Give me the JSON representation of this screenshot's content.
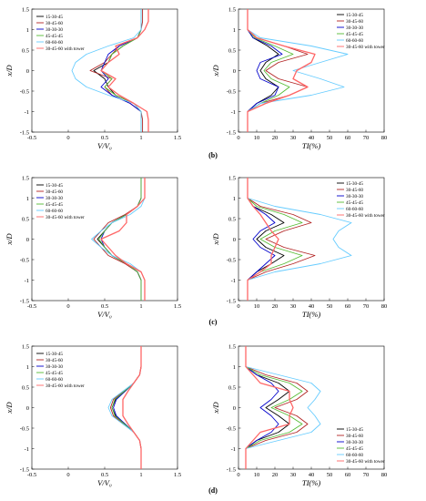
{
  "colors": [
    "#000000",
    "#b22222",
    "#0000cc",
    "#55bb33",
    "#66ccff",
    "#ff6666"
  ],
  "series_names": [
    "15-30-45",
    "30-45-60",
    "30-30-30",
    "45-45-45",
    "60-60-60",
    "30-45-60 with tower"
  ],
  "panel_labels": [
    "(b)",
    "(c)",
    "(d)"
  ],
  "chart_data": [
    {
      "type": "line",
      "row": 0,
      "kind": "V",
      "xlabel": "V/V₀",
      "ylabel": "x/D",
      "xlim": [
        -0.5,
        1.5
      ],
      "ylim": [
        -1.5,
        1.5
      ],
      "xticks": [
        -0.5,
        0.0,
        0.5,
        1.0,
        1.5
      ],
      "yticks": [
        -1.5,
        -1.0,
        -0.5,
        0.0,
        0.5,
        1.0,
        1.5
      ],
      "legend": "top-left",
      "y": [
        -1.5,
        -1.2,
        -1.0,
        -0.8,
        -0.6,
        -0.4,
        -0.2,
        0.0,
        0.2,
        0.4,
        0.6,
        0.8,
        1.0,
        1.2,
        1.5
      ],
      "series": [
        {
          "name": "15-30-45",
          "values": [
            1.0,
            1.0,
            1.0,
            0.9,
            0.65,
            0.55,
            0.5,
            0.35,
            0.55,
            0.6,
            0.75,
            0.95,
            1.0,
            1.0,
            1.0
          ]
        },
        {
          "name": "30-45-60",
          "values": [
            1.02,
            1.02,
            1.0,
            0.85,
            0.6,
            0.5,
            0.6,
            0.3,
            0.5,
            0.6,
            0.7,
            0.95,
            1.0,
            1.02,
            1.02
          ]
        },
        {
          "name": "30-30-30",
          "values": [
            1.0,
            1.0,
            1.0,
            0.85,
            0.6,
            0.45,
            0.55,
            0.45,
            0.5,
            0.55,
            0.7,
            0.95,
            1.0,
            1.0,
            1.0
          ]
        },
        {
          "name": "45-45-45",
          "values": [
            1.0,
            1.0,
            1.0,
            0.9,
            0.65,
            0.5,
            0.6,
            0.45,
            0.55,
            0.6,
            0.75,
            0.95,
            1.0,
            1.0,
            1.0
          ]
        },
        {
          "name": "60-60-60",
          "values": [
            1.0,
            1.0,
            1.0,
            0.9,
            0.55,
            0.25,
            0.1,
            0.05,
            0.1,
            0.25,
            0.55,
            0.9,
            1.0,
            1.0,
            1.0
          ]
        },
        {
          "name": "30-45-60 with tower",
          "values": [
            1.1,
            1.1,
            1.08,
            0.9,
            0.7,
            0.55,
            0.65,
            0.45,
            0.55,
            0.7,
            0.65,
            0.95,
            1.05,
            1.1,
            1.1
          ]
        }
      ]
    },
    {
      "type": "line",
      "row": 0,
      "kind": "TI",
      "xlabel": "TI(%)",
      "ylabel": "x/D",
      "xlim": [
        0,
        80
      ],
      "ylim": [
        -1.5,
        1.5
      ],
      "xticks": [
        0,
        10,
        20,
        30,
        40,
        50,
        60,
        70,
        80
      ],
      "yticks": [
        -1.5,
        -1.0,
        -0.5,
        0.0,
        0.5,
        1.0,
        1.5
      ],
      "legend": "top-right",
      "y": [
        -1.5,
        -1.0,
        -0.8,
        -0.6,
        -0.4,
        -0.2,
        0.0,
        0.2,
        0.4,
        0.6,
        0.8,
        1.0,
        1.5
      ],
      "series": [
        {
          "name": "15-30-45",
          "values": [
            5,
            5,
            10,
            18,
            22,
            15,
            12,
            15,
            22,
            16,
            8,
            5,
            5
          ]
        },
        {
          "name": "30-45-60",
          "values": [
            5,
            5,
            12,
            28,
            38,
            22,
            15,
            22,
            38,
            25,
            10,
            5,
            5
          ]
        },
        {
          "name": "30-30-30",
          "values": [
            5,
            5,
            10,
            20,
            22,
            12,
            10,
            12,
            24,
            18,
            8,
            5,
            5
          ]
        },
        {
          "name": "45-45-45",
          "values": [
            5,
            5,
            12,
            22,
            28,
            18,
            14,
            18,
            30,
            20,
            9,
            5,
            5
          ]
        },
        {
          "name": "60-60-60",
          "values": [
            5,
            5,
            12,
            40,
            58,
            45,
            30,
            45,
            60,
            40,
            12,
            5,
            5
          ]
        },
        {
          "name": "30-45-60 with tower",
          "values": [
            5,
            5,
            15,
            28,
            38,
            30,
            32,
            40,
            42,
            25,
            10,
            5,
            5
          ]
        }
      ]
    },
    {
      "type": "line",
      "row": 1,
      "kind": "V",
      "xlabel": "V/V₀",
      "ylabel": "x/D",
      "xlim": [
        -0.5,
        1.5
      ],
      "ylim": [
        -1.5,
        1.5
      ],
      "xticks": [
        -0.5,
        0.0,
        0.5,
        1.0,
        1.5
      ],
      "yticks": [
        -1.5,
        -1.0,
        -0.5,
        0.0,
        0.5,
        1.0,
        1.5
      ],
      "legend": "top-left",
      "y": [
        -1.5,
        -1.0,
        -0.8,
        -0.6,
        -0.4,
        -0.2,
        0.0,
        0.2,
        0.4,
        0.6,
        0.8,
        1.0,
        1.5
      ],
      "series": [
        {
          "name": "15-30-45",
          "values": [
            1.0,
            1.0,
            0.95,
            0.8,
            0.6,
            0.5,
            0.4,
            0.5,
            0.6,
            0.8,
            0.95,
            1.0,
            1.0
          ]
        },
        {
          "name": "30-45-60",
          "values": [
            1.0,
            1.0,
            0.95,
            0.78,
            0.55,
            0.45,
            0.35,
            0.45,
            0.55,
            0.78,
            0.95,
            1.0,
            1.0
          ]
        },
        {
          "name": "30-30-30",
          "values": [
            1.0,
            1.0,
            0.95,
            0.8,
            0.6,
            0.5,
            0.45,
            0.5,
            0.6,
            0.8,
            0.95,
            1.0,
            1.0
          ]
        },
        {
          "name": "45-45-45",
          "values": [
            1.0,
            1.0,
            0.95,
            0.8,
            0.6,
            0.5,
            0.42,
            0.5,
            0.6,
            0.8,
            0.95,
            1.0,
            1.0
          ]
        },
        {
          "name": "60-60-60",
          "values": [
            1.05,
            1.05,
            1.0,
            0.85,
            0.6,
            0.45,
            0.32,
            0.45,
            0.6,
            0.85,
            1.0,
            1.05,
            1.05
          ]
        },
        {
          "name": "30-45-60 with tower",
          "values": [
            1.05,
            1.05,
            1.0,
            0.8,
            0.65,
            0.55,
            0.45,
            0.7,
            0.8,
            0.8,
            0.95,
            1.05,
            1.05
          ]
        }
      ]
    },
    {
      "type": "line",
      "row": 1,
      "kind": "TI",
      "xlabel": "TI(%)",
      "ylabel": "x/D",
      "xlim": [
        0,
        80
      ],
      "ylim": [
        -1.5,
        1.5
      ],
      "xticks": [
        0,
        10,
        20,
        30,
        40,
        50,
        60,
        70,
        80
      ],
      "yticks": [
        -1.5,
        -1.0,
        -0.5,
        0.0,
        0.5,
        1.0,
        1.5
      ],
      "legend": "top-right",
      "y": [
        -1.5,
        -1.0,
        -0.8,
        -0.6,
        -0.4,
        -0.2,
        0.0,
        0.2,
        0.4,
        0.6,
        0.8,
        1.0,
        1.5
      ],
      "series": [
        {
          "name": "15-30-45",
          "values": [
            5,
            5,
            10,
            18,
            25,
            15,
            10,
            15,
            25,
            18,
            8,
            5,
            5
          ]
        },
        {
          "name": "30-45-60",
          "values": [
            5,
            5,
            15,
            30,
            42,
            25,
            15,
            25,
            40,
            30,
            12,
            5,
            5
          ]
        },
        {
          "name": "30-30-30",
          "values": [
            5,
            5,
            10,
            15,
            20,
            12,
            8,
            12,
            20,
            15,
            8,
            5,
            5
          ]
        },
        {
          "name": "45-45-45",
          "values": [
            5,
            5,
            12,
            25,
            35,
            20,
            12,
            20,
            35,
            25,
            10,
            5,
            5
          ]
        },
        {
          "name": "60-60-60",
          "values": [
            5,
            5,
            20,
            45,
            62,
            55,
            52,
            55,
            62,
            45,
            20,
            5,
            5
          ]
        },
        {
          "name": "30-45-60 with tower",
          "values": [
            5,
            5,
            12,
            18,
            18,
            20,
            22,
            18,
            15,
            12,
            8,
            5,
            5
          ]
        }
      ]
    },
    {
      "type": "line",
      "row": 2,
      "kind": "V",
      "xlabel": "V/V₀",
      "ylabel": "x/D",
      "xlim": [
        -0.5,
        1.5
      ],
      "ylim": [
        -1.5,
        1.5
      ],
      "xticks": [
        -0.5,
        0.0,
        0.5,
        1.0,
        1.5
      ],
      "yticks": [
        -1.5,
        -1.0,
        -0.5,
        0.0,
        0.5,
        1.0,
        1.5
      ],
      "legend": "top-left",
      "y": [
        -1.5,
        -1.0,
        -0.8,
        -0.6,
        -0.4,
        -0.2,
        0.0,
        0.2,
        0.4,
        0.6,
        0.8,
        1.0,
        1.5
      ],
      "series": [
        {
          "name": "15-30-45",
          "values": [
            1.0,
            1.0,
            0.98,
            0.9,
            0.78,
            0.65,
            0.6,
            0.65,
            0.78,
            0.9,
            0.98,
            1.0,
            1.0
          ]
        },
        {
          "name": "30-45-60",
          "values": [
            1.0,
            1.0,
            0.98,
            0.9,
            0.76,
            0.62,
            0.58,
            0.62,
            0.76,
            0.9,
            0.98,
            1.0,
            1.0
          ]
        },
        {
          "name": "30-30-30",
          "values": [
            1.0,
            1.0,
            0.98,
            0.9,
            0.78,
            0.66,
            0.62,
            0.66,
            0.78,
            0.9,
            0.98,
            1.0,
            1.0
          ]
        },
        {
          "name": "45-45-45",
          "values": [
            1.0,
            1.0,
            0.98,
            0.9,
            0.77,
            0.64,
            0.6,
            0.64,
            0.77,
            0.9,
            0.98,
            1.0,
            1.0
          ]
        },
        {
          "name": "60-60-60",
          "values": [
            1.0,
            1.0,
            0.98,
            0.9,
            0.75,
            0.6,
            0.55,
            0.6,
            0.75,
            0.9,
            0.98,
            1.0,
            1.0
          ]
        },
        {
          "name": "30-45-60 with tower",
          "values": [
            1.0,
            1.0,
            0.98,
            0.9,
            0.82,
            0.75,
            0.75,
            0.75,
            0.82,
            0.9,
            0.98,
            1.0,
            1.0
          ]
        }
      ]
    },
    {
      "type": "line",
      "row": 2,
      "kind": "TI",
      "xlabel": "TI(%)",
      "ylabel": "x/D",
      "xlim": [
        0,
        80
      ],
      "ylim": [
        -1.5,
        1.5
      ],
      "xticks": [
        0,
        10,
        20,
        30,
        40,
        50,
        60,
        70,
        80
      ],
      "yticks": [
        -1.5,
        -1.0,
        -0.5,
        0.0,
        0.5,
        1.0,
        1.5
      ],
      "legend": "bottom-right",
      "y": [
        -1.5,
        -1.0,
        -0.8,
        -0.6,
        -0.4,
        -0.2,
        0.0,
        0.2,
        0.4,
        0.6,
        0.8,
        1.0,
        1.5
      ],
      "series": [
        {
          "name": "15-30-45",
          "values": [
            4,
            4,
            10,
            22,
            28,
            22,
            15,
            22,
            28,
            22,
            10,
            4,
            4
          ]
        },
        {
          "name": "30-45-60",
          "values": [
            4,
            4,
            15,
            32,
            38,
            32,
            20,
            32,
            38,
            32,
            15,
            4,
            4
          ]
        },
        {
          "name": "30-30-30",
          "values": [
            4,
            4,
            10,
            18,
            22,
            18,
            12,
            18,
            22,
            18,
            10,
            4,
            4
          ]
        },
        {
          "name": "45-45-45",
          "values": [
            4,
            4,
            12,
            28,
            35,
            28,
            18,
            28,
            35,
            28,
            12,
            4,
            4
          ]
        },
        {
          "name": "60-60-60",
          "values": [
            4,
            4,
            22,
            40,
            45,
            42,
            38,
            42,
            45,
            40,
            22,
            4,
            4
          ]
        },
        {
          "name": "30-45-60 with tower",
          "values": [
            4,
            4,
            8,
            12,
            28,
            28,
            30,
            28,
            28,
            12,
            8,
            4,
            4
          ]
        }
      ]
    }
  ]
}
